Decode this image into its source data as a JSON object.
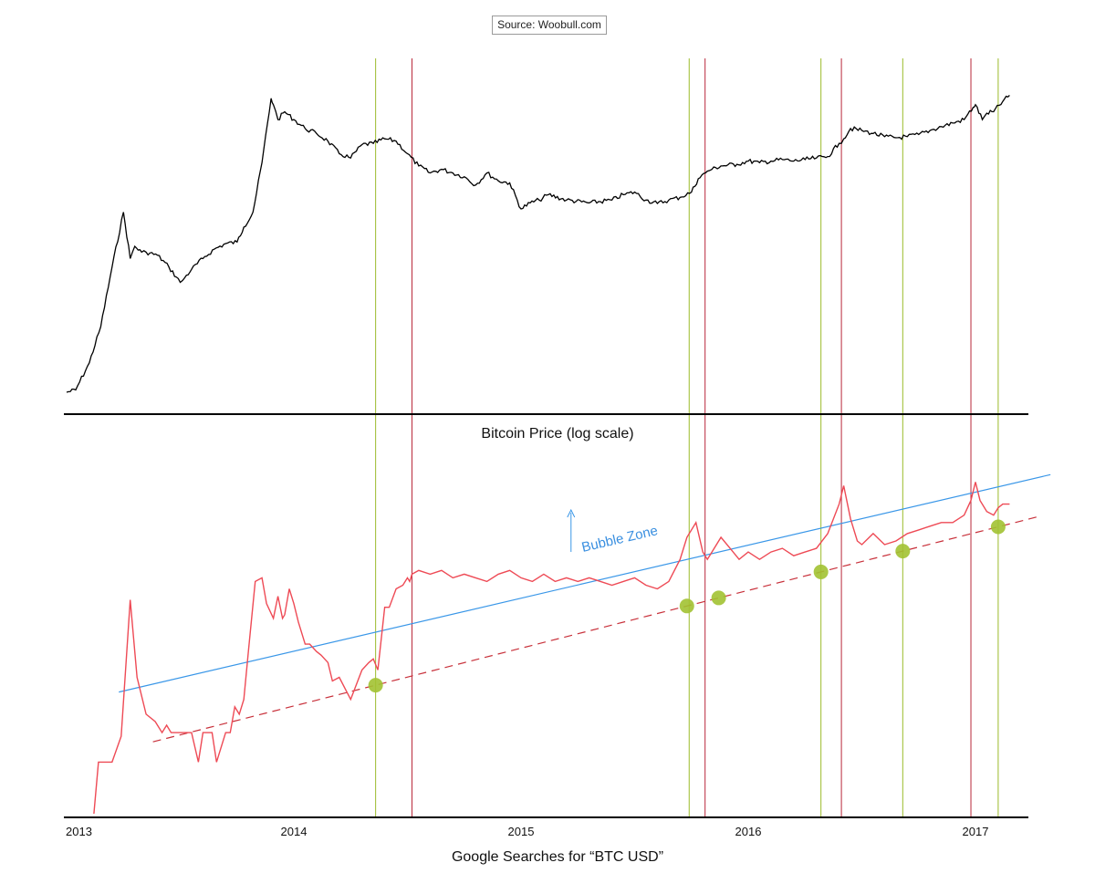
{
  "source": "Source: Woobull.com",
  "colors": {
    "price": "#000000",
    "searches": "#ee4a55",
    "bubble": "#3a97e8",
    "support": "#c8303a",
    "green_marker": "#a2c232",
    "green_line": "#9bbb2a",
    "red_line": "#b8283a"
  },
  "chart_data": [
    {
      "type": "line",
      "title": "Bitcoin Price (log scale)",
      "yscale": "log",
      "xlim": [
        2013.0,
        2017.25
      ],
      "ylim": [
        10,
        2000
      ],
      "series": [
        {
          "name": "Bitcoin Price",
          "x": [
            2013.0,
            2013.04,
            2013.1,
            2013.15,
            2013.2,
            2013.25,
            2013.28,
            2013.3,
            2013.33,
            2013.35,
            2013.4,
            2013.45,
            2013.5,
            2013.52,
            2013.55,
            2013.6,
            2013.65,
            2013.7,
            2013.75,
            2013.78,
            2013.82,
            2013.86,
            2013.9,
            2013.91,
            2013.93,
            2013.96,
            2014.0,
            2014.05,
            2014.1,
            2014.15,
            2014.2,
            2014.25,
            2014.3,
            2014.35,
            2014.4,
            2014.45,
            2014.5,
            2014.55,
            2014.6,
            2014.65,
            2014.7,
            2014.75,
            2014.8,
            2014.85,
            2014.9,
            2014.95,
            2015.0,
            2015.04,
            2015.08,
            2015.12,
            2015.2,
            2015.3,
            2015.4,
            2015.45,
            2015.5,
            2015.55,
            2015.6,
            2015.65,
            2015.7,
            2015.75,
            2015.78,
            2015.82,
            2015.84,
            2015.88,
            2015.95,
            2016.0,
            2016.05,
            2016.1,
            2016.15,
            2016.2,
            2016.25,
            2016.3,
            2016.35,
            2016.4,
            2016.42,
            2016.45,
            2016.5,
            2016.55,
            2016.6,
            2016.65,
            2016.7,
            2016.75,
            2016.8,
            2016.85,
            2016.9,
            2016.95,
            2016.99,
            2017.0,
            2017.03,
            2017.05,
            2017.08,
            2017.12,
            2017.15
          ],
          "values": [
            13.5,
            14,
            21,
            36,
            88,
            200,
            100,
            120,
            110,
            110,
            105,
            88,
            70,
            75,
            85,
            100,
            115,
            125,
            128,
            160,
            200,
            420,
            1100,
            1000,
            800,
            900,
            800,
            700,
            650,
            580,
            480,
            450,
            550,
            560,
            600,
            580,
            480,
            400,
            360,
            380,
            360,
            340,
            300,
            360,
            320,
            310,
            210,
            230,
            240,
            260,
            240,
            230,
            240,
            260,
            270,
            240,
            228,
            240,
            250,
            270,
            330,
            370,
            380,
            400,
            410,
            430,
            420,
            430,
            440,
            430,
            440,
            450,
            460,
            560,
            600,
            700,
            680,
            650,
            620,
            610,
            620,
            640,
            680,
            720,
            760,
            800,
            960,
            1000,
            800,
            880,
            900,
            1050,
            1150
          ]
        }
      ]
    },
    {
      "type": "line",
      "title": "Google Searches for “BTC USD”",
      "xlabel": "Google Searches for “BTC USD”",
      "xlim": [
        2013.0,
        2017.25
      ],
      "ylim": [
        0,
        100
      ],
      "x_ticks": [
        "2013",
        "2014",
        "2015",
        "2016",
        "2017"
      ],
      "annotations": [
        "Bubble Zone"
      ],
      "series": [
        {
          "name": "Searches",
          "x": [
            2013.12,
            2013.14,
            2013.2,
            2013.24,
            2013.28,
            2013.31,
            2013.35,
            2013.39,
            2013.42,
            2013.44,
            2013.46,
            2013.48,
            2013.5,
            2013.55,
            2013.58,
            2013.6,
            2013.62,
            2013.64,
            2013.66,
            2013.7,
            2013.72,
            2013.74,
            2013.76,
            2013.78,
            2013.8,
            2013.83,
            2013.86,
            2013.88,
            2013.91,
            2013.93,
            2013.95,
            2013.96,
            2013.98,
            2014.0,
            2014.02,
            2014.05,
            2014.07,
            2014.1,
            2014.12,
            2014.15,
            2014.17,
            2014.2,
            2014.25,
            2014.3,
            2014.33,
            2014.35,
            2014.37,
            2014.4,
            2014.42,
            2014.45,
            2014.48,
            2014.5,
            2014.51,
            2014.52,
            2014.55,
            2014.6,
            2014.65,
            2014.7,
            2014.75,
            2014.8,
            2014.85,
            2014.9,
            2014.95,
            2015.0,
            2015.05,
            2015.1,
            2015.15,
            2015.2,
            2015.25,
            2015.3,
            2015.35,
            2015.4,
            2015.45,
            2015.5,
            2015.55,
            2015.6,
            2015.65,
            2015.7,
            2015.73,
            2015.77,
            2015.8,
            2015.82,
            2015.84,
            2015.88,
            2015.92,
            2015.96,
            2016.0,
            2016.05,
            2016.1,
            2016.15,
            2016.2,
            2016.25,
            2016.3,
            2016.35,
            2016.4,
            2016.42,
            2016.45,
            2016.48,
            2016.5,
            2016.55,
            2016.6,
            2016.65,
            2016.7,
            2016.75,
            2016.8,
            2016.85,
            2016.9,
            2016.95,
            2016.98,
            2017.0,
            2017.02,
            2017.05,
            2017.08,
            2017.1,
            2017.12,
            2017.15
          ],
          "values": [
            1,
            15,
            15,
            22,
            59,
            38,
            28,
            26,
            23,
            25,
            23,
            23,
            23,
            23,
            15,
            23,
            23,
            23,
            15,
            23,
            23,
            30,
            28,
            32,
            45,
            64,
            65,
            58,
            54,
            60,
            54,
            55,
            62,
            58,
            53,
            47,
            47,
            45,
            44,
            42,
            37,
            38,
            32,
            40,
            42,
            43,
            40,
            57,
            57,
            62,
            63,
            65,
            64,
            66,
            67,
            66,
            67,
            65,
            66,
            65,
            64,
            66,
            67,
            65,
            64,
            66,
            64,
            65,
            64,
            65,
            64,
            63,
            64,
            65,
            63,
            62,
            64,
            70,
            76,
            80,
            72,
            70,
            72,
            76,
            73,
            70,
            72,
            70,
            72,
            73,
            71,
            72,
            73,
            77,
            85,
            90,
            81,
            75,
            74,
            77,
            74,
            75,
            77,
            78,
            79,
            80,
            80,
            82,
            86,
            91,
            86,
            83,
            82,
            84,
            85,
            85
          ]
        },
        {
          "name": "Bubble Zone line",
          "x": [
            2013.23,
            2017.33
          ],
          "values": [
            34,
            93
          ]
        },
        {
          "name": "Support line",
          "x": [
            2013.38,
            2017.27
          ],
          "values": [
            20.5,
            81.5
          ]
        }
      ],
      "markers_x": [
        2014.36,
        2015.73,
        2015.87,
        2016.32,
        2016.68,
        2017.1
      ],
      "vertical_lines_green": [
        2014.36,
        2015.74,
        2016.32,
        2016.68,
        2017.1
      ],
      "vertical_lines_red": [
        2014.52,
        2015.81,
        2016.41,
        2016.98
      ]
    }
  ]
}
